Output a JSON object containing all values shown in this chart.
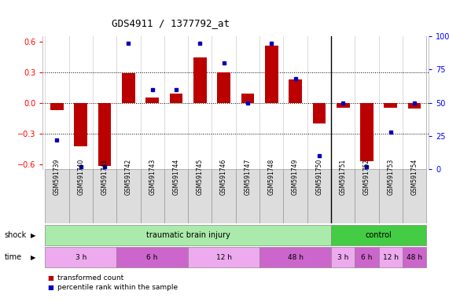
{
  "title": "GDS4911 / 1377792_at",
  "samples": [
    "GSM591739",
    "GSM591740",
    "GSM591741",
    "GSM591742",
    "GSM591743",
    "GSM591744",
    "GSM591745",
    "GSM591746",
    "GSM591747",
    "GSM591748",
    "GSM591749",
    "GSM591750",
    "GSM591751",
    "GSM591752",
    "GSM591753",
    "GSM591754"
  ],
  "transformed_count": [
    -0.07,
    -0.43,
    -0.62,
    0.29,
    0.05,
    0.09,
    0.44,
    0.3,
    0.09,
    0.56,
    0.23,
    -0.2,
    -0.05,
    -0.57,
    -0.05,
    -0.06
  ],
  "percentile_rank": [
    22,
    2,
    2,
    95,
    60,
    60,
    95,
    80,
    50,
    95,
    68,
    10,
    50,
    2,
    28,
    50
  ],
  "ylim": [
    -0.65,
    0.65
  ],
  "y2lim": [
    0,
    100
  ],
  "yticks": [
    -0.6,
    -0.3,
    0.0,
    0.3,
    0.6
  ],
  "y2ticks": [
    0,
    25,
    50,
    75,
    100
  ],
  "bar_color": "#bb0000",
  "dot_color": "#0000bb",
  "shock_tbi_color": "#aaeaaa",
  "shock_ctrl_color": "#44cc44",
  "time_light_color": "#eeaaee",
  "time_dark_color": "#cc66cc",
  "sample_bg_color": "#dddddd",
  "shock_groups": [
    {
      "label": "traumatic brain injury",
      "start": 0,
      "end": 12,
      "color": "#aaeaaa"
    },
    {
      "label": "control",
      "start": 12,
      "end": 16,
      "color": "#44cc44"
    }
  ],
  "time_groups": [
    {
      "label": "3 h",
      "start": 0,
      "end": 3,
      "color": "#eeaaee"
    },
    {
      "label": "6 h",
      "start": 3,
      "end": 6,
      "color": "#cc66cc"
    },
    {
      "label": "12 h",
      "start": 6,
      "end": 9,
      "color": "#eeaaee"
    },
    {
      "label": "48 h",
      "start": 9,
      "end": 12,
      "color": "#cc66cc"
    },
    {
      "label": "3 h",
      "start": 12,
      "end": 13,
      "color": "#eeaaee"
    },
    {
      "label": "6 h",
      "start": 13,
      "end": 14,
      "color": "#cc66cc"
    },
    {
      "label": "12 h",
      "start": 14,
      "end": 15,
      "color": "#eeaaee"
    },
    {
      "label": "48 h",
      "start": 15,
      "end": 16,
      "color": "#cc66cc"
    }
  ],
  "shock_label": "shock",
  "time_label": "time",
  "legend_items": [
    {
      "label": "transformed count",
      "color": "#bb0000"
    },
    {
      "label": "percentile rank within the sample",
      "color": "#0000bb"
    }
  ],
  "dotted_yvals": [
    -0.3,
    0.0,
    0.3
  ],
  "bar_width": 0.55,
  "n_samples": 16,
  "tbi_ctrl_boundary": 12
}
